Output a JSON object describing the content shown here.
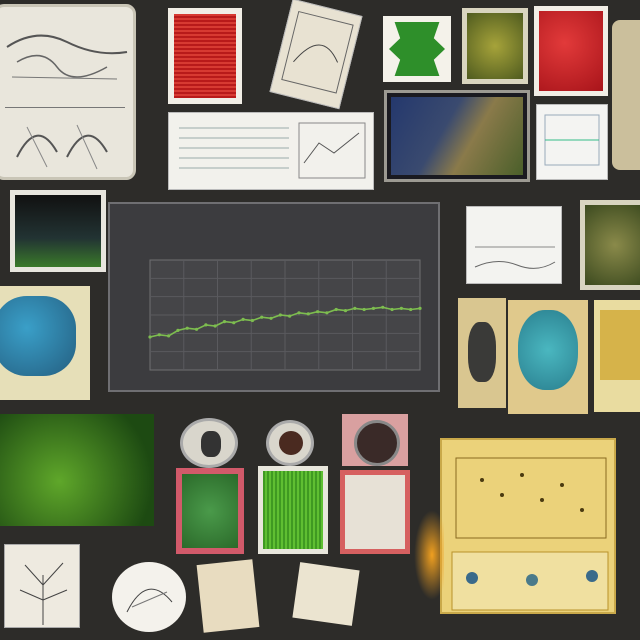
{
  "board": {
    "background": "#2d2c29",
    "top_left_caption": "",
    "bottom_left_caption": "",
    "bottom_mid_caption": "",
    "bottom_right_caption": ""
  },
  "main_chart": {
    "title": "",
    "subtitle": "",
    "series_color": "#7dbd4f"
  },
  "small_chart": {
    "title": ""
  },
  "chart_data": {
    "type": "line",
    "title": "",
    "xlabel": "",
    "ylabel": "",
    "x": [
      0,
      1,
      2,
      3,
      4,
      5,
      6,
      7,
      8,
      9,
      10,
      11,
      12,
      13,
      14,
      15,
      16,
      17,
      18,
      19,
      20,
      21,
      22,
      23,
      24,
      25,
      26,
      27,
      28,
      29
    ],
    "y": [
      0.3,
      0.32,
      0.31,
      0.36,
      0.38,
      0.37,
      0.41,
      0.4,
      0.44,
      0.43,
      0.46,
      0.45,
      0.48,
      0.47,
      0.5,
      0.49,
      0.52,
      0.51,
      0.53,
      0.52,
      0.55,
      0.54,
      0.56,
      0.55,
      0.56,
      0.57,
      0.55,
      0.56,
      0.55,
      0.56
    ],
    "ylim": [
      0,
      1
    ],
    "grid": true
  }
}
